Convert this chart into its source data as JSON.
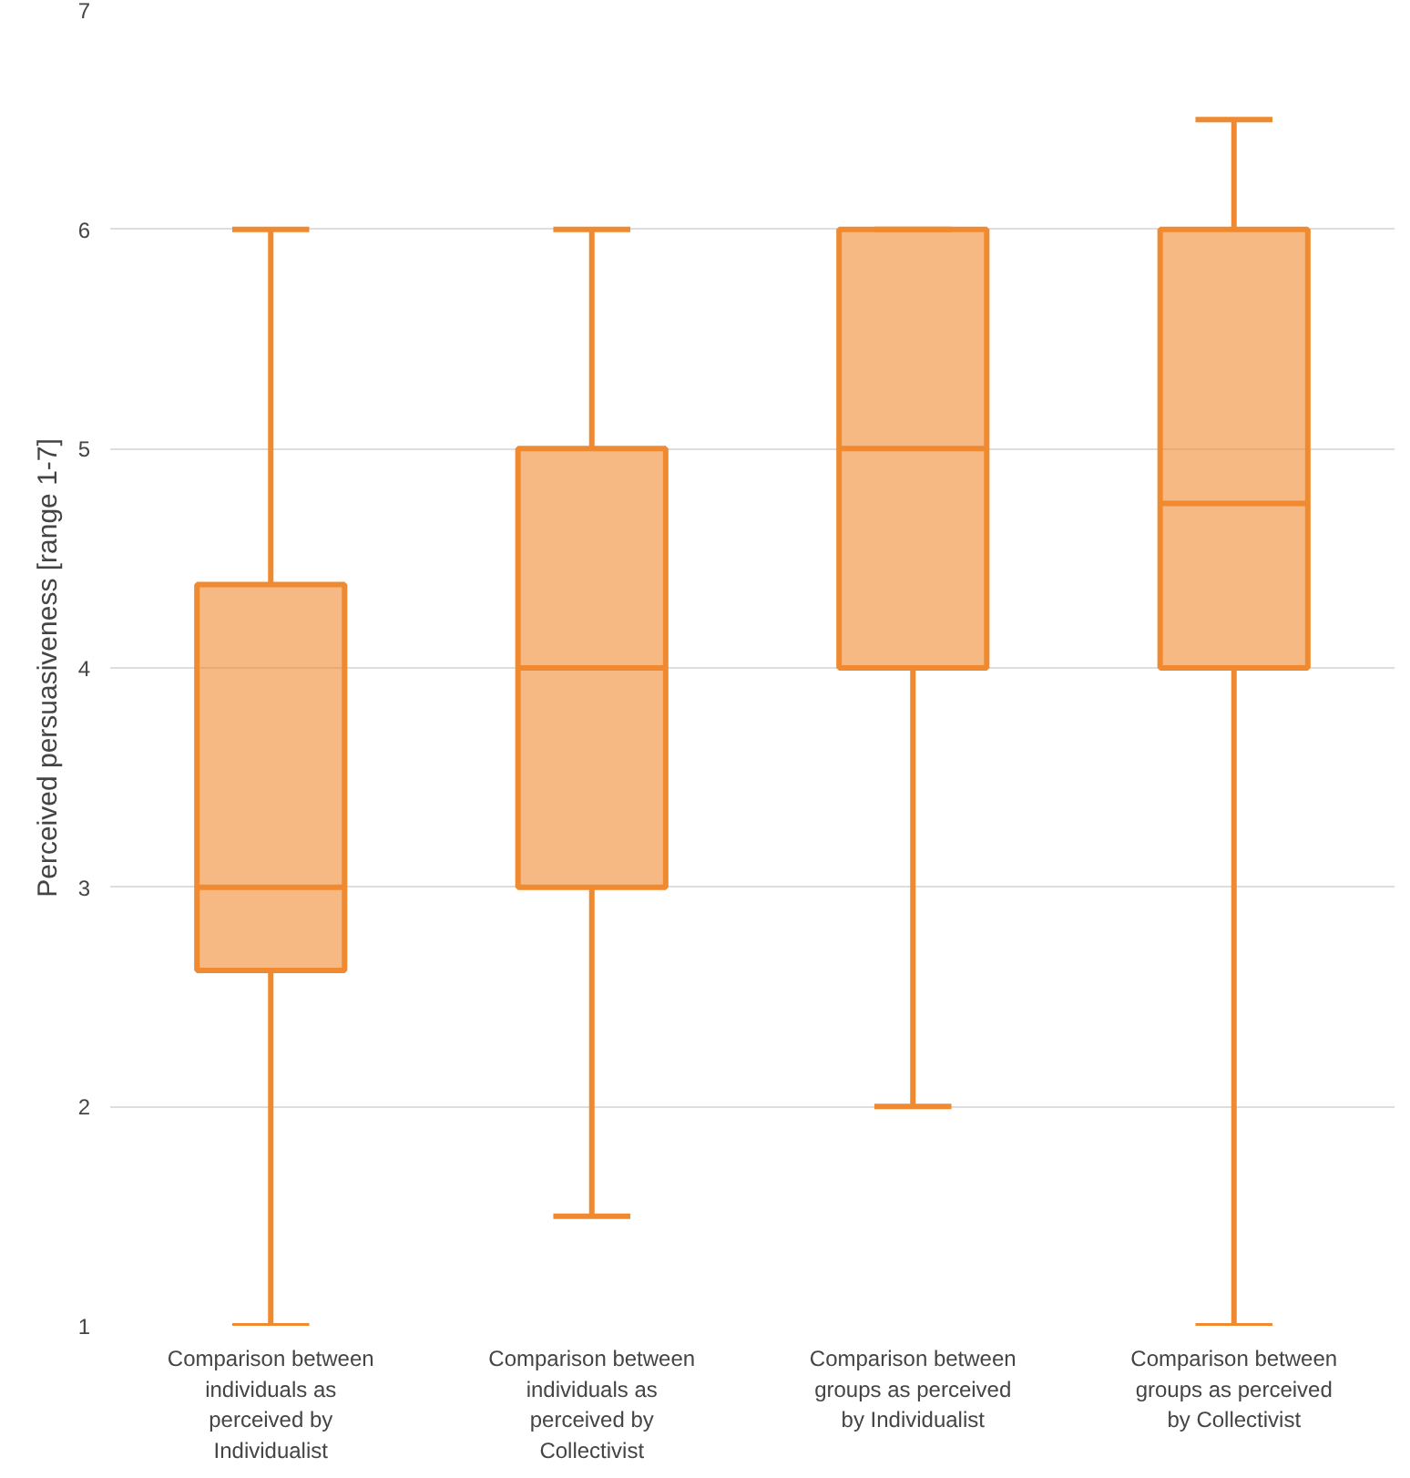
{
  "chart_data": {
    "type": "box",
    "ylabel": "Perceived persuasiveness [range 1-7]",
    "categories": [
      "Comparison between individuals as perceived by Individualist",
      "Comparison between individuals as perceived by Collectivist",
      "Comparison between groups as perceived by Individualist",
      "Comparison between groups as perceived by Collectivist"
    ],
    "series": [
      {
        "color": "#f08a30",
        "boxes": [
          {
            "low": 1,
            "q1": 2.62,
            "median": 3,
            "q3": 4.38,
            "high": 6
          },
          {
            "low": 1.5,
            "q1": 3,
            "median": 4,
            "q3": 5,
            "high": 6
          },
          {
            "low": 2,
            "q1": 4,
            "median": 5,
            "q3": 6,
            "high": 6
          },
          {
            "low": 1,
            "q1": 4,
            "median": 4.75,
            "q3": 6,
            "high": 6.5
          }
        ]
      }
    ],
    "ylim": [
      1,
      7
    ],
    "yticks": [
      1,
      2,
      3,
      4,
      5,
      6,
      7
    ],
    "grid": "y"
  }
}
